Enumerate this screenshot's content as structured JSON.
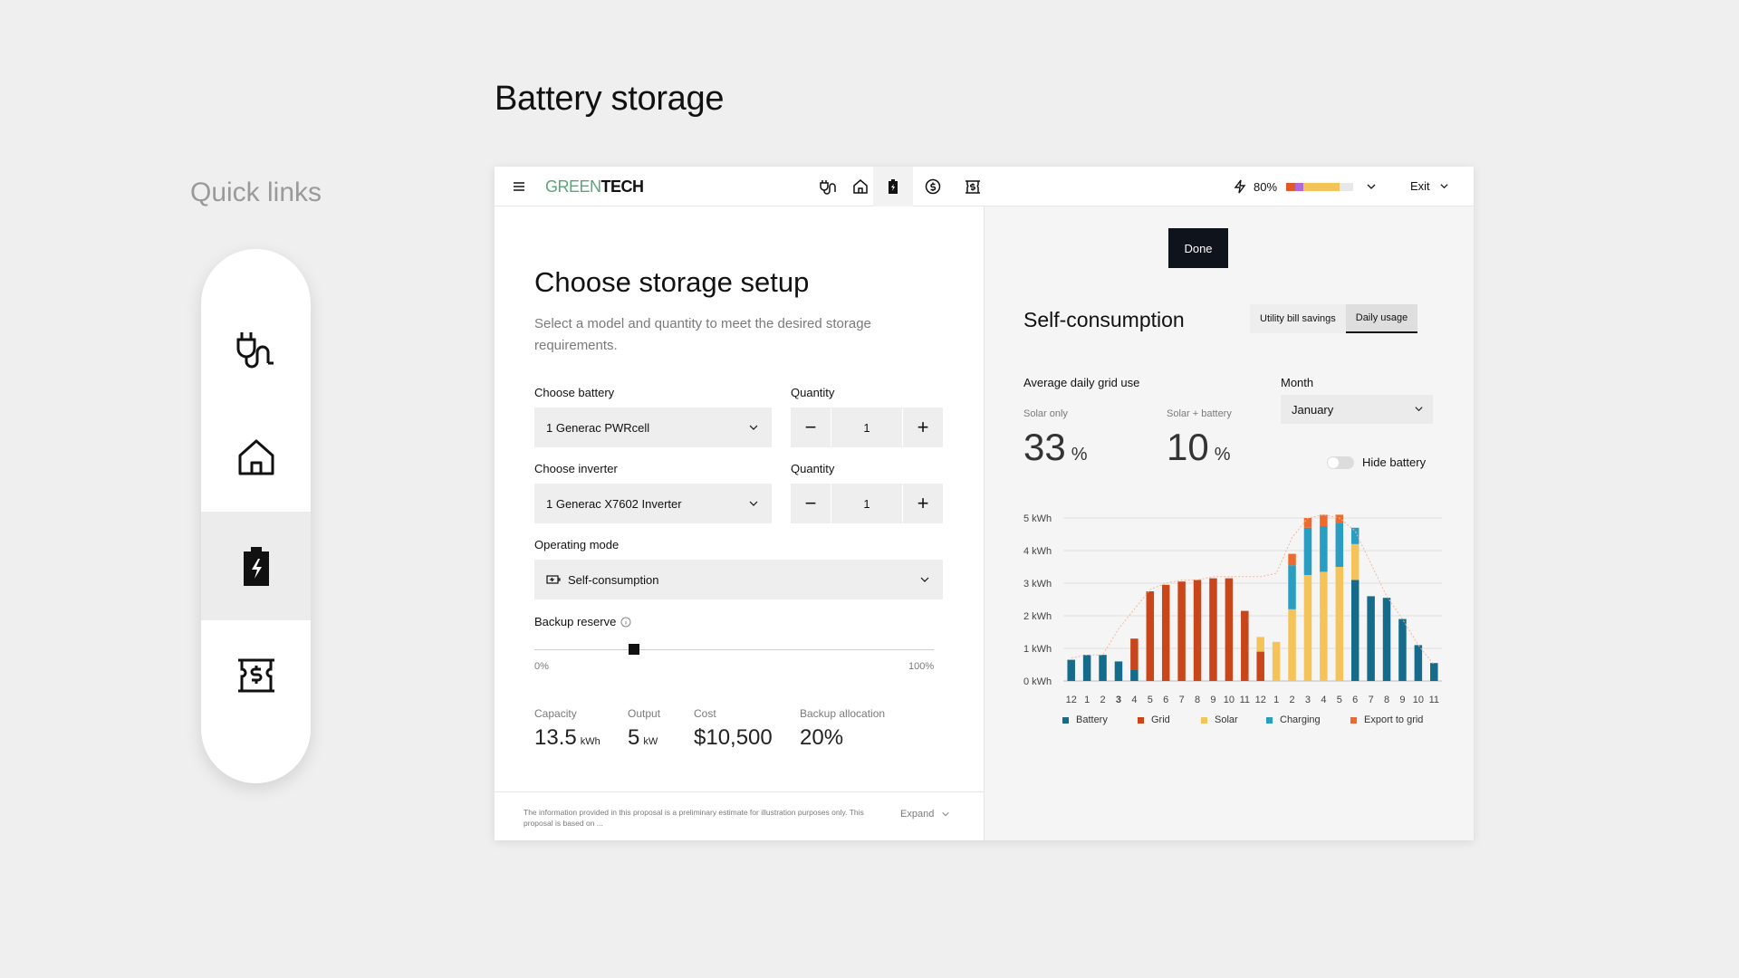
{
  "page_title": "Battery storage",
  "quick_links": {
    "title": "Quick links",
    "items": [
      {
        "icon": "plug-icon",
        "active": false
      },
      {
        "icon": "home-icon",
        "active": false
      },
      {
        "icon": "battery-icon",
        "active": true
      },
      {
        "icon": "incentive-icon",
        "active": false
      }
    ]
  },
  "topbar": {
    "logo_green": "GREEN",
    "logo_dark": "TECH",
    "energy_percent": "80%",
    "energy_fill": 0.8,
    "exit_label": "Exit"
  },
  "setup": {
    "title": "Choose storage setup",
    "subtitle": "Select a model and quantity to meet the desired storage requirements.",
    "battery_label": "Choose battery",
    "battery_value": "1 Generac PWRcell",
    "battery_qty_label": "Quantity",
    "battery_qty": "1",
    "inverter_label": "Choose inverter",
    "inverter_value": "1 Generac X7602 Inverter",
    "inverter_qty_label": "Quantity",
    "inverter_qty": "1",
    "mode_label": "Operating mode",
    "mode_value": "Self-consumption",
    "backup_label": "Backup reserve",
    "backup_value": 0.25,
    "slider_min": "0%",
    "slider_max": "100%",
    "stats": {
      "capacity_label": "Capacity",
      "capacity_value": "13.5",
      "capacity_unit": "kWh",
      "output_label": "Output",
      "output_value": "5",
      "output_unit": "kW",
      "cost_label": "Cost",
      "cost_value": "$10,500",
      "allocation_label": "Backup allocation",
      "allocation_value": "20%"
    },
    "disclaimer": "The information provided in this proposal is a preliminary estimate for illustration purposes only. This proposal is based on ...",
    "expand_label": "Expand"
  },
  "consumption": {
    "done_label": "Done",
    "title": "Self-consumption",
    "tabs": [
      "Utility bill savings",
      "Daily usage"
    ],
    "selected_tab": "Daily usage",
    "avg_label": "Average daily grid use",
    "solar_only_label": "Solar only",
    "solar_only_value": "33",
    "solar_battery_label": "Solar + battery",
    "solar_battery_value": "10",
    "pct_unit": "%",
    "month_label": "Month",
    "month_value": "January",
    "hide_battery_label": "Hide battery"
  },
  "chart_data": {
    "type": "bar",
    "stacked": true,
    "categories": [
      "12",
      "1",
      "2",
      "3",
      "4",
      "5",
      "6",
      "7",
      "8",
      "9",
      "10",
      "11",
      "12",
      "1",
      "2",
      "3",
      "4",
      "5",
      "6",
      "7",
      "8",
      "9",
      "10",
      "11"
    ],
    "y_ticks": [
      "0 kWh",
      "1 kWh",
      "2 kWh",
      "3 kWh",
      "4 kWh",
      "5 kWh"
    ],
    "ylim": [
      0,
      5
    ],
    "series": [
      {
        "name": "Battery",
        "color": "#156b8a",
        "values": [
          0.65,
          0.8,
          0.8,
          0.6,
          0.35,
          0,
          0,
          0,
          0,
          0,
          0,
          0,
          0,
          0,
          0,
          0,
          0,
          0,
          3.1,
          2.6,
          2.55,
          1.9,
          1.1,
          0.55
        ]
      },
      {
        "name": "Grid",
        "color": "#c9461b",
        "values": [
          0,
          0,
          0,
          0,
          0.95,
          2.75,
          2.95,
          3.05,
          3.1,
          3.15,
          3.15,
          2.15,
          0.9,
          0,
          0,
          0,
          0,
          0,
          0,
          0,
          0,
          0,
          0,
          0
        ]
      },
      {
        "name": "Solar",
        "color": "#f4c45a",
        "values": [
          0,
          0,
          0,
          0,
          0,
          0,
          0,
          0,
          0,
          0,
          0,
          0,
          0.45,
          1.2,
          2.2,
          3.25,
          3.35,
          3.5,
          1.1,
          0,
          0,
          0,
          0,
          0
        ]
      },
      {
        "name": "Charging",
        "color": "#2a9dc2",
        "values": [
          0,
          0,
          0,
          0,
          0,
          0,
          0,
          0,
          0,
          0,
          0,
          0,
          0,
          0,
          1.35,
          1.45,
          1.4,
          1.35,
          0.5,
          0,
          0,
          0,
          0,
          0
        ]
      },
      {
        "name": "Export to grid",
        "color": "#ed6a2f",
        "values": [
          0,
          0,
          0,
          0,
          0,
          0,
          0,
          0,
          0,
          0,
          0,
          0,
          0,
          0,
          0.35,
          0.3,
          0.35,
          0.25,
          0,
          0,
          0,
          0,
          0,
          0
        ]
      }
    ],
    "line": {
      "values": [
        0.7,
        0.8,
        0.8,
        1.6,
        2.2,
        2.8,
        3.0,
        3.1,
        3.1,
        3.2,
        3.2,
        3.2,
        3.2,
        3.3,
        4.4,
        5.0,
        5.1,
        5.0,
        4.6,
        3.6,
        2.6,
        1.9,
        1.1,
        0.5
      ]
    },
    "grid": true,
    "legend": "bottom"
  }
}
